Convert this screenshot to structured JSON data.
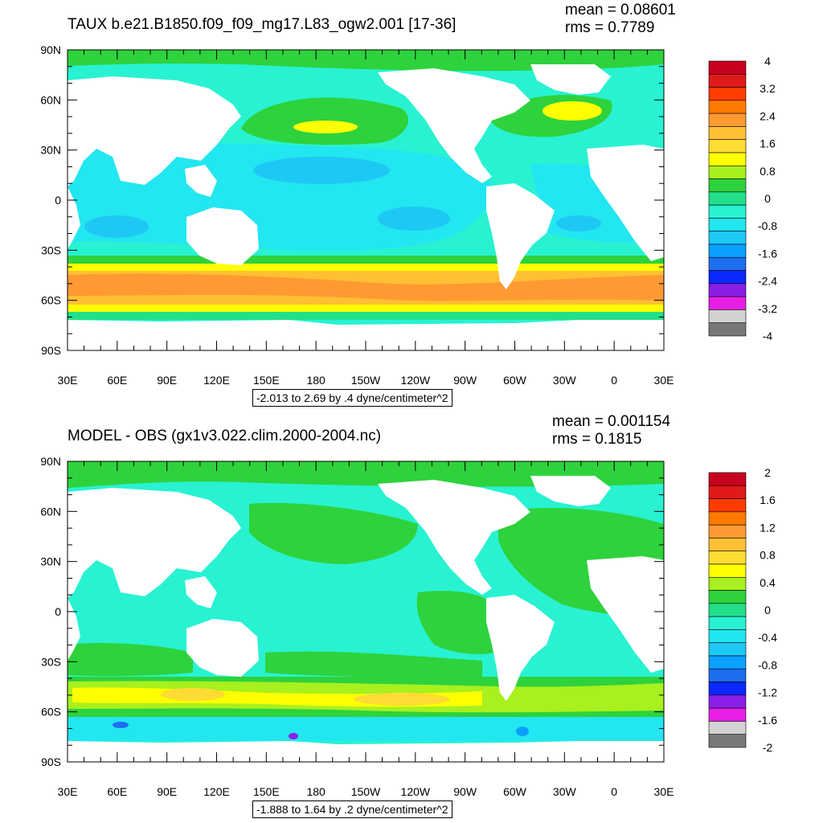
{
  "panels": [
    {
      "title": "TAUX b.e21.B1850.f09_f09_mg17.L83_ogw2.001 [17-36]",
      "mean": "mean = 0.08601",
      "rms": "rms = 0.7789",
      "caption": "-2.013 to 2.69 by .4 dyne/centimeter^2",
      "lat_labels": [
        "90N",
        "60N",
        "30N",
        "0",
        "30S",
        "60S",
        "90S"
      ],
      "lon_labels": [
        "30E",
        "60E",
        "90E",
        "120E",
        "150E",
        "180",
        "150W",
        "120W",
        "90W",
        "60W",
        "30W",
        "0",
        "30E"
      ],
      "colorbar": {
        "labels": [
          "4",
          "3.2",
          "2.4",
          "1.6",
          "0.8",
          "0",
          "-0.8",
          "-1.6",
          "-2.4",
          "-3.2",
          "-4"
        ],
        "colors": [
          "#c8001e",
          "#e01a1a",
          "#ff3c00",
          "#ff7a00",
          "#ff9a33",
          "#ffc033",
          "#ffdc33",
          "#ffff00",
          "#a8f01e",
          "#2ed23c",
          "#22e08a",
          "#28f2d2",
          "#22e6f0",
          "#1ec8f5",
          "#0aa0ff",
          "#1e6ef0",
          "#0a28ff",
          "#8a1ee6",
          "#e61ee6",
          "#d2d2d2",
          "#787878"
        ]
      }
    },
    {
      "title": "MODEL - OBS (gx1v3.022.clim.2000-2004.nc)",
      "mean": "mean = 0.001154",
      "rms": "rms = 0.1815",
      "caption": "-1.888 to 1.64 by .2 dyne/centimeter^2",
      "lat_labels": [
        "90N",
        "60N",
        "30N",
        "0",
        "30S",
        "60S",
        "90S"
      ],
      "lon_labels": [
        "30E",
        "60E",
        "90E",
        "120E",
        "150E",
        "180",
        "150W",
        "120W",
        "90W",
        "60W",
        "30W",
        "0",
        "30E"
      ],
      "colorbar": {
        "labels": [
          "2",
          "1.6",
          "1.2",
          "0.8",
          "0.4",
          "0",
          "-0.4",
          "-0.8",
          "-1.2",
          "-1.6",
          "-2"
        ],
        "colors": [
          "#c8001e",
          "#e01a1a",
          "#ff3c00",
          "#ff7a00",
          "#ff9a33",
          "#ffc033",
          "#ffdc33",
          "#ffff00",
          "#a8f01e",
          "#2ed23c",
          "#22e08a",
          "#28f2d2",
          "#22e6f0",
          "#1ec8f5",
          "#0aa0ff",
          "#1e6ef0",
          "#0a28ff",
          "#8a1ee6",
          "#e61ee6",
          "#d2d2d2",
          "#787878"
        ]
      }
    }
  ]
}
